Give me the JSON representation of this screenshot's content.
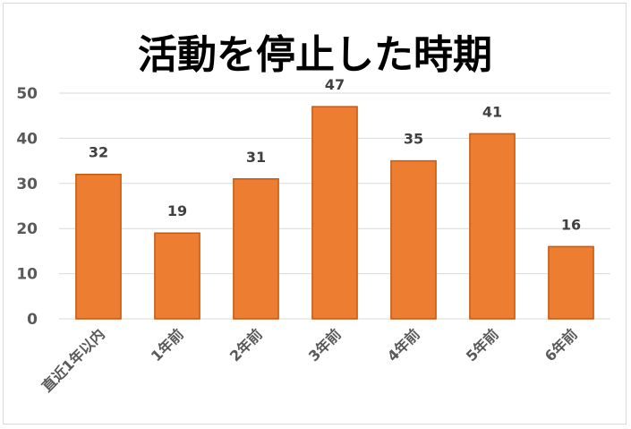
{
  "chart_data": {
    "type": "bar",
    "title": "活動を停止した時期",
    "xlabel": "",
    "ylabel": "",
    "categories": [
      "直近1年以内",
      "1年前",
      "2年前",
      "3年前",
      "4年前",
      "5年前",
      "6年前"
    ],
    "values": [
      32,
      19,
      31,
      47,
      35,
      41,
      16
    ],
    "ylim": [
      0,
      50
    ],
    "yticks": [
      0,
      10,
      20,
      30,
      40,
      50
    ],
    "grid": true,
    "legend": "none",
    "data_labels": true,
    "bar_color": "#ed7d31",
    "bar_edge_color": "#c55a11"
  }
}
